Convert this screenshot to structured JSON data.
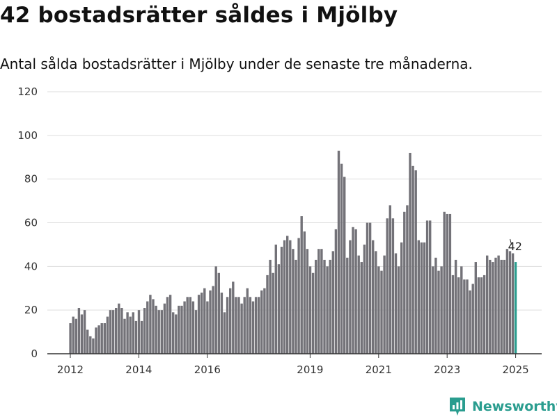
{
  "title": "42 bostadsrätter såldes i Mjölby",
  "subtitle": "Antal sålda bostadsrätter i Mjölby under de senaste tre månaderna.",
  "brand": {
    "name": "Newsworthy",
    "color": "#2a9d8f"
  },
  "colors": {
    "bar": "#737278",
    "highlight": "#2a9d8f",
    "grid": "#dddddd",
    "axis": "#333333"
  },
  "chart_data": {
    "type": "bar",
    "title": "42 bostadsrätter såldes i Mjölby",
    "xlabel": "",
    "ylabel": "",
    "ylim": [
      0,
      120
    ],
    "yticks": [
      0,
      20,
      40,
      60,
      80,
      100,
      120
    ],
    "x_start": "2012-01",
    "xticks": [
      {
        "label": "2012",
        "date": "2012-01"
      },
      {
        "label": "2014",
        "date": "2014-01"
      },
      {
        "label": "2016",
        "date": "2016-01"
      },
      {
        "label": "2019",
        "date": "2019-01"
      },
      {
        "label": "2021",
        "date": "2021-01"
      },
      {
        "label": "2023",
        "date": "2023-01"
      },
      {
        "label": "2025",
        "date": "2025-01"
      }
    ],
    "grid": true,
    "highlight_index": 156,
    "highlight_label": "42",
    "values": [
      14,
      17,
      16,
      21,
      18,
      20,
      11,
      8,
      7,
      12,
      13,
      14,
      14,
      17,
      20,
      20,
      21,
      23,
      21,
      16,
      19,
      17,
      19,
      15,
      20,
      15,
      21,
      24,
      27,
      25,
      22,
      20,
      20,
      23,
      26,
      27,
      19,
      18,
      22,
      22,
      24,
      26,
      26,
      24,
      20,
      27,
      28,
      30,
      24,
      29,
      31,
      40,
      37,
      28,
      19,
      26,
      30,
      33,
      26,
      26,
      23,
      26,
      30,
      26,
      24,
      26,
      26,
      29,
      30,
      36,
      43,
      37,
      50,
      41,
      49,
      52,
      54,
      52,
      48,
      43,
      53,
      63,
      56,
      48,
      40,
      37,
      43,
      48,
      48,
      43,
      40,
      43,
      47,
      57,
      93,
      87,
      81,
      44,
      52,
      58,
      57,
      45,
      42,
      50,
      60,
      60,
      52,
      47,
      40,
      38,
      45,
      62,
      68,
      62,
      46,
      40,
      51,
      65,
      68,
      92,
      86,
      84,
      52,
      51,
      51,
      61,
      61,
      40,
      44,
      38,
      40,
      65,
      64,
      64,
      36,
      43,
      35,
      40,
      34,
      34,
      29,
      32,
      42,
      35,
      35,
      36,
      45,
      43,
      42,
      44,
      45,
      43,
      43,
      48,
      47,
      46,
      42
    ]
  }
}
